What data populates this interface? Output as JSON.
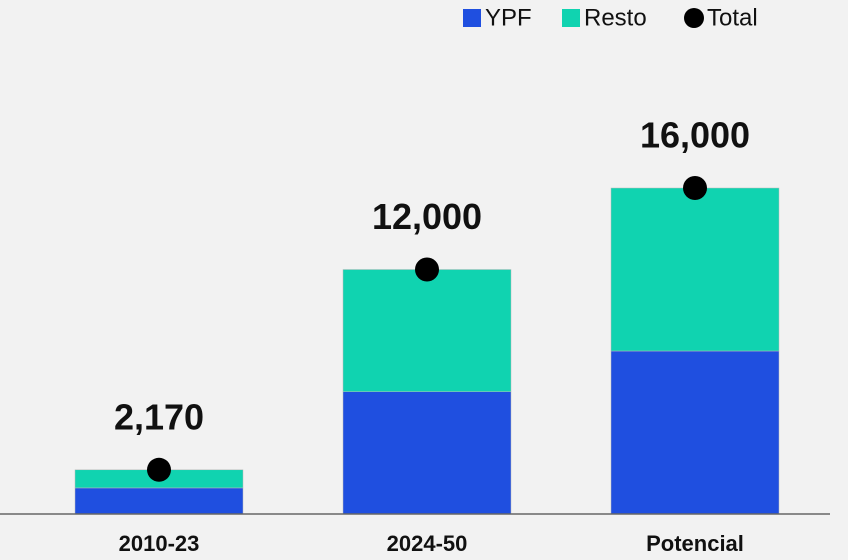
{
  "chart_data": {
    "type": "bar",
    "stacked": true,
    "categories": [
      "2010-23",
      "2024-50",
      "Potencial"
    ],
    "series": [
      {
        "name": "YPF",
        "color": "#1f4fe0",
        "values": [
          1280,
          6000,
          8000
        ]
      },
      {
        "name": "Resto",
        "color": "#10d3b0",
        "values": [
          890,
          6000,
          8000
        ]
      },
      {
        "name": "Total",
        "color": "#000000",
        "mark": "dot",
        "values": [
          2170,
          12000,
          16000
        ],
        "value_labels": [
          "2,170",
          "12,000",
          "16,000"
        ]
      }
    ],
    "legend": "top-right"
  }
}
